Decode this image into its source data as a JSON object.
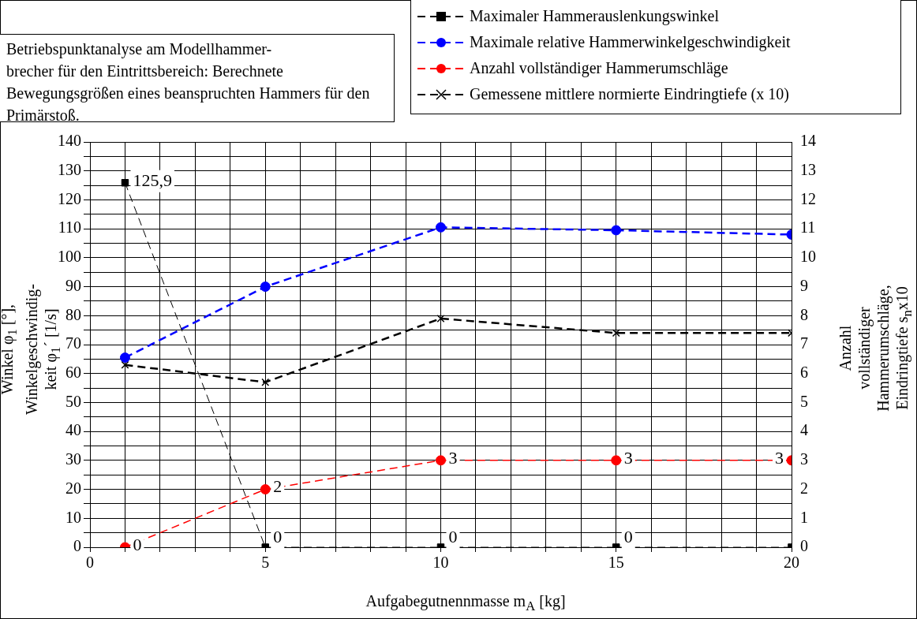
{
  "chart_data": {
    "type": "line",
    "title": "Betriebspunktanalyse am Modellhammer-\nbrecher für den Eintrittsbereich: Berechnete Bewegungsgrößen eines beanspruchten Hammers für den Primärstoß.",
    "xlabel": "Aufgabegutnennmasse m$_{A}$ [kg]",
    "ylabel": "Winkel φ$_{1}$ [°],\nWinkelgeschwindig-\nkeit φ$_{1}$´ [1/s]",
    "y2label": "Anzahl\nvollständiger\nHammerumschläge,\nEindringtiefe s$_{n}$x10",
    "x": [
      1,
      5,
      10,
      15,
      20
    ],
    "series": [
      {
        "name": "Maximaler Hammerauslenkungswinkel",
        "color": "#000000",
        "values": [
          125.9,
          0,
          0,
          0,
          0
        ],
        "marker": "square",
        "line_style": "dashed",
        "value_labels": [
          "125,9",
          "0",
          "0",
          "0",
          null
        ]
      },
      {
        "name": "Maximale relative Hammerwinkelgeschwindigkeit",
        "color": "#0000ff",
        "values": [
          65.5,
          90,
          110.5,
          109.5,
          108
        ],
        "marker": "circle",
        "line_style": "dashed"
      },
      {
        "name": "Anzahl vollständiger Hammerumschläge",
        "color": "#ff0000",
        "values": [
          0,
          2,
          3,
          3,
          3
        ],
        "axis": "y2",
        "marker": "circle",
        "line_style": "dashed",
        "value_labels": [
          "0",
          "2",
          "3",
          "3",
          "3"
        ]
      },
      {
        "name": "Gemessene mittlere normierte Eindringtiefe (x 10)",
        "color": "#000000",
        "values": [
          6.3,
          5.7,
          7.9,
          7.4,
          7.4
        ],
        "axis": "y2",
        "marker": "cross",
        "line_style": "dashed"
      }
    ],
    "xlim": [
      0,
      20
    ],
    "xticks": [
      0,
      {
        "value": 1,
        "label": null
      },
      {
        "value": 2,
        "label": null
      },
      {
        "value": 3,
        "label": null
      },
      {
        "value": 4,
        "label": null
      },
      5,
      {
        "value": 6,
        "label": null
      },
      {
        "value": 7,
        "label": null
      },
      {
        "value": 8,
        "label": null
      },
      {
        "value": 9,
        "label": null
      },
      10,
      {
        "value": 11,
        "label": null
      },
      {
        "value": 12,
        "label": null
      },
      {
        "value": 13,
        "label": null
      },
      {
        "value": 14,
        "label": null
      },
      15,
      {
        "value": 16,
        "label": null
      },
      {
        "value": 17,
        "label": null
      },
      {
        "value": 18,
        "label": null
      },
      {
        "value": 19,
        "label": null
      },
      20
    ],
    "ylim": [
      0,
      140
    ],
    "yticks": [
      0,
      {
        "value": 5,
        "label": null
      },
      10,
      {
        "value": 15,
        "label": null
      },
      20,
      {
        "value": 25,
        "label": null
      },
      30,
      {
        "value": 35,
        "label": null
      },
      40,
      {
        "value": 45,
        "label": null
      },
      50,
      {
        "value": 55,
        "label": null
      },
      60,
      {
        "value": 65,
        "label": null
      },
      70,
      {
        "value": 75,
        "label": null
      },
      80,
      {
        "value": 85,
        "label": null
      },
      90,
      {
        "value": 95,
        "label": null
      },
      100,
      {
        "value": 105,
        "label": null
      },
      110,
      {
        "value": 115,
        "label": null
      },
      120,
      {
        "value": 125,
        "label": null
      },
      130,
      {
        "value": 135,
        "label": null
      },
      140
    ],
    "y2lim": [
      0,
      14
    ],
    "y2ticks": [
      0,
      1,
      2,
      3,
      4,
      5,
      6,
      7,
      8,
      9,
      10,
      11,
      12,
      13,
      14
    ],
    "grid": true,
    "legend": "top right"
  }
}
